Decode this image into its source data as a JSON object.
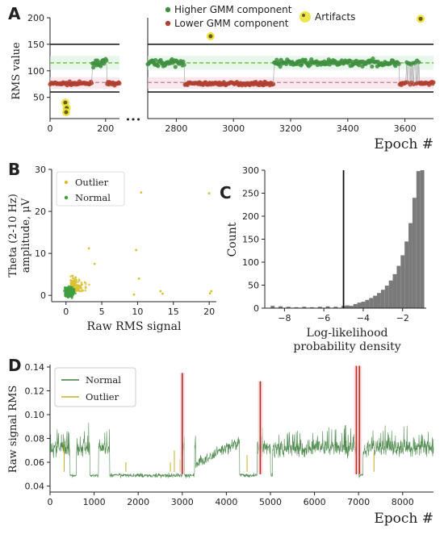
{
  "panels": {
    "A": "A",
    "B": "B",
    "C": "C",
    "D": "D"
  },
  "chart_data": [
    {
      "id": "A",
      "type": "scatter",
      "ylabel": "RMS value",
      "xlabel": "Epoch #",
      "ylim": [
        10,
        200
      ],
      "yticks": [
        50,
        100,
        150,
        200
      ],
      "segments": [
        {
          "xlim": [
            0,
            250
          ],
          "xticks": [
            0,
            200
          ]
        },
        {
          "xlim": [
            2700,
            3700
          ],
          "xticks": [
            2800,
            3000,
            3200,
            3400,
            3600
          ]
        }
      ],
      "break_marker": "•••",
      "hlines": [
        {
          "y": 150,
          "style": "solid",
          "color": "#222222"
        },
        {
          "y": 60,
          "style": "solid",
          "color": "#222222"
        },
        {
          "y": 115,
          "style": "dashed",
          "color": "#66bb33"
        },
        {
          "y": 78,
          "style": "dashed",
          "color": "#c88080"
        }
      ],
      "legend": {
        "placement": "top-right",
        "entries": [
          "Higher GMM component",
          "Lower GMM component",
          "Artifacts"
        ]
      },
      "series": [
        {
          "name": "Higher GMM component",
          "color": "#3f8f3f",
          "level": 115
        },
        {
          "name": "Lower GMM component",
          "color": "#b04030",
          "level": 75
        },
        {
          "name": "Artifacts",
          "color": "#e8e030",
          "points": [
            [
              55,
              40
            ],
            [
              60,
              30
            ],
            [
              58,
              22
            ],
            [
              2920,
              165
            ],
            [
              3655,
              198
            ]
          ]
        }
      ]
    },
    {
      "id": "B",
      "type": "scatter",
      "xlabel": "Raw RMS signal",
      "ylabel_lines": [
        "Theta (2-10 Hz)",
        "amplitude, μV"
      ],
      "xlim": [
        -2,
        21
      ],
      "ylim": [
        -1.5,
        30
      ],
      "xticks": [
        0,
        5,
        10,
        15,
        20
      ],
      "yticks": [
        0,
        10,
        20,
        30
      ],
      "legend": {
        "placement": "top-left",
        "entries": [
          "Outlier",
          "Normal"
        ]
      },
      "series": [
        {
          "name": "Outlier",
          "color": "#d8c030",
          "points": [
            [
              9.8,
              10.8
            ],
            [
              10.2,
              4
            ],
            [
              13.5,
              0.4
            ],
            [
              13.2,
              1.0
            ],
            [
              20.1,
              0.5
            ],
            [
              20.3,
              1.0
            ],
            [
              9.5,
              0.2
            ],
            [
              10.5,
              24.5
            ],
            [
              20.0,
              24.3
            ],
            [
              3.2,
              11.2
            ],
            [
              4.0,
              7.5
            ]
          ]
        },
        {
          "name": "Normal",
          "color": "#3f9f3f",
          "cluster_center": [
            0.5,
            0.8
          ]
        }
      ]
    },
    {
      "id": "C",
      "type": "bar",
      "ylabel": "Count",
      "xlabel_lines": [
        "Log-likelihood",
        "probability density"
      ],
      "xlim": [
        -9,
        -0.8
      ],
      "ylim": [
        0,
        300
      ],
      "xticks": [
        -8,
        -6,
        -4,
        -2
      ],
      "yticks": [
        0,
        50,
        100,
        150,
        200,
        250,
        300
      ],
      "threshold": -5,
      "bars": [
        [
          -8.6,
          5
        ],
        [
          -8.2,
          4
        ],
        [
          -7.8,
          3
        ],
        [
          -7.4,
          2
        ],
        [
          -7.0,
          3
        ],
        [
          -6.6,
          2
        ],
        [
          -6.2,
          3
        ],
        [
          -5.8,
          4
        ],
        [
          -5.4,
          3
        ],
        [
          -5.0,
          5
        ],
        [
          -4.8,
          6
        ],
        [
          -4.6,
          5
        ],
        [
          -4.4,
          9
        ],
        [
          -4.2,
          12
        ],
        [
          -4.0,
          14
        ],
        [
          -3.8,
          18
        ],
        [
          -3.6,
          22
        ],
        [
          -3.4,
          27
        ],
        [
          -3.2,
          33
        ],
        [
          -3.0,
          40
        ],
        [
          -2.8,
          49
        ],
        [
          -2.6,
          60
        ],
        [
          -2.4,
          74
        ],
        [
          -2.2,
          92
        ],
        [
          -2.0,
          115
        ],
        [
          -1.8,
          145
        ],
        [
          -1.6,
          185
        ],
        [
          -1.4,
          240
        ],
        [
          -1.2,
          298
        ],
        [
          -1.0,
          300
        ]
      ]
    },
    {
      "id": "D",
      "type": "line",
      "ylabel": "Raw signal RMS",
      "xlabel": "Epoch #",
      "xlim": [
        0,
        8700
      ],
      "ylim": [
        0.035,
        0.142
      ],
      "xticks": [
        0,
        1000,
        2000,
        3000,
        4000,
        5000,
        6000,
        7000,
        8000
      ],
      "yticks": [
        0.04,
        0.06,
        0.08,
        0.1,
        0.12,
        0.14
      ],
      "legend": {
        "placement": "top-left",
        "entries": [
          "Normal",
          "Outlier"
        ]
      },
      "series": [
        {
          "name": "Normal",
          "color": "#3f7f3f"
        },
        {
          "name": "Outlier",
          "color": "#c8b020"
        }
      ],
      "spikes": [
        [
          3000,
          0.135
        ],
        [
          4770,
          0.128
        ],
        [
          6950,
          0.141
        ],
        [
          7020,
          0.141
        ]
      ]
    }
  ]
}
